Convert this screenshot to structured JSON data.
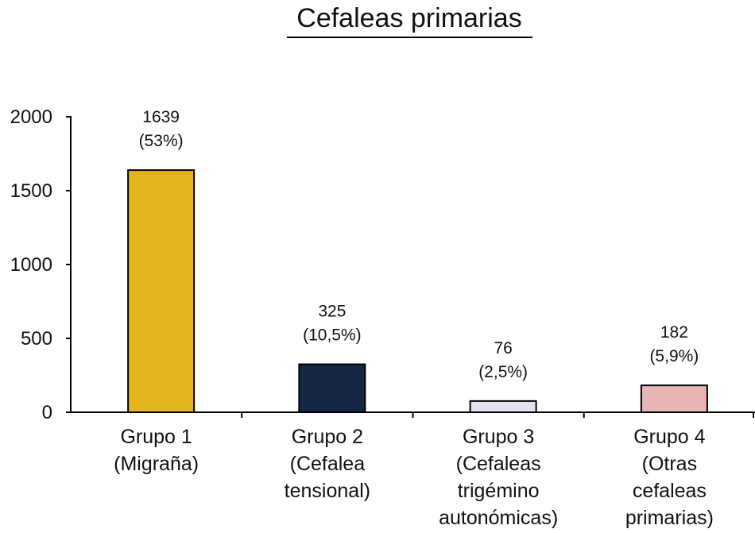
{
  "chart_data": {
    "type": "bar",
    "title": "Cefaleas primarias",
    "xlabel": "",
    "ylabel": "",
    "ylim": [
      0,
      2000
    ],
    "yticks": [
      0,
      500,
      1000,
      1500,
      2000
    ],
    "grid": false,
    "categories": [
      [
        "Grupo 1",
        "(Migraña)"
      ],
      [
        "Grupo 2",
        "(Cefalea",
        "tensional)"
      ],
      [
        "Grupo 3",
        "(Cefaleas",
        "trigémino",
        "autonómicas)"
      ],
      [
        "Grupo 4",
        "(Otras",
        "cefaleas",
        "primarias)"
      ]
    ],
    "values": [
      1639,
      325,
      76,
      182
    ],
    "data_labels": [
      [
        "1639",
        "(53%)"
      ],
      [
        "325",
        "(10,5%)"
      ],
      [
        "76",
        "(2,5%)"
      ],
      [
        "182",
        "(5,9%)"
      ]
    ],
    "colors": [
      "#e2b520",
      "#142846",
      "#e4e4f0",
      "#e8b4b4"
    ]
  }
}
